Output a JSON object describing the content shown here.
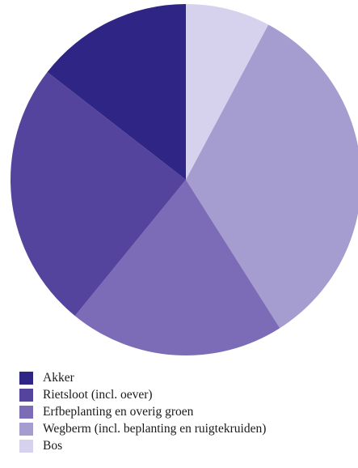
{
  "chart_data": {
    "type": "pie",
    "start_angle_deg": 0,
    "direction": "clockwise",
    "slices_in_draw_order": [
      {
        "label": "Bos",
        "value": 7.8,
        "color": "#d6d1ec"
      },
      {
        "label": "Wegberm (incl. beplanting en ruigtekruiden)",
        "value": 33.2,
        "color": "#a59ccf"
      },
      {
        "label": "Erfbeplanting en overig groen",
        "value": 19.9,
        "color": "#7c6cb7"
      },
      {
        "label": "Rietsloot (incl. oever)",
        "value": 24.6,
        "color": "#55449d"
      },
      {
        "label": "Akker",
        "value": 14.5,
        "color": "#2e2585"
      }
    ],
    "legend_order": [
      {
        "label": "Akker",
        "color": "#2e2585"
      },
      {
        "label": "Rietsloot (incl. oever)",
        "color": "#55449d"
      },
      {
        "label": "Erfbeplanting en overig groen",
        "color": "#7c6cb7"
      },
      {
        "label": "Wegberm (incl. beplanting en ruigtekruiden)",
        "color": "#a59ccf"
      },
      {
        "label": "Bos",
        "color": "#d6d1ec"
      }
    ],
    "legend_position": "bottom-left",
    "title": ""
  }
}
